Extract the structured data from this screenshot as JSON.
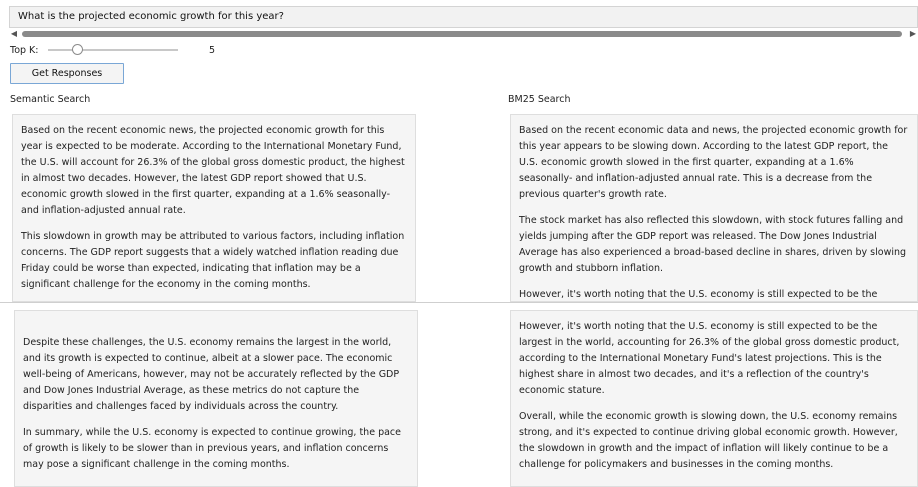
{
  "query": {
    "text": "What is the projected economic growth for this year?"
  },
  "controls": {
    "topk_label": "Top K:",
    "topk_value": "5",
    "topk_fraction": 0.2,
    "button_label": "Get Responses"
  },
  "semantic": {
    "title": "Semantic Search",
    "top_paragraphs": [
      "Based on the recent economic news, the projected economic growth for this year is expected to be moderate. According to the International Monetary Fund, the U.S. will account for 26.3% of the global gross domestic product, the highest in almost two decades. However, the latest GDP report showed that U.S. economic growth slowed in the first quarter, expanding at a 1.6% seasonally- and inflation-adjusted annual rate.",
      "This slowdown in growth may be attributed to various factors, including inflation concerns. The GDP report suggests that a widely watched inflation reading due Friday could be worse than expected, indicating that inflation may be a significant challenge for the economy in the coming months."
    ],
    "bottom_paragraphs": [
      "Despite these challenges, the U.S. economy remains the largest in the world, and its growth is expected to continue, albeit at a slower pace. The economic well-being of Americans, however, may not be accurately reflected by the GDP and Dow Jones Industrial Average, as these metrics do not capture the disparities and challenges faced by individuals across the country.",
      "In summary, while the U.S. economy is expected to continue growing, the pace of growth is likely to be slower than in previous years, and inflation concerns may pose a significant challenge in the coming months."
    ]
  },
  "bm25": {
    "title": "BM25 Search",
    "top_paragraphs": [
      "Based on the recent economic data and news, the projected economic growth for this year appears to be slowing down. According to the latest GDP report, the U.S. economic growth slowed in the first quarter, expanding at a 1.6% seasonally- and inflation-adjusted annual rate. This is a decrease from the previous quarter's growth rate.",
      "The stock market has also reflected this slowdown, with stock futures falling and yields jumping after the GDP report was released. The Dow Jones Industrial Average has also experienced a broad-based decline in shares, driven by slowing growth and stubborn inflation.",
      "However, it's worth noting that the U.S. economy is still expected to be the"
    ],
    "bottom_paragraphs": [
      "However, it's worth noting that the U.S. economy is still expected to be the largest in the world, accounting for 26.3% of the global gross domestic product, according to the International Monetary Fund's latest projections. This is the highest share in almost two decades, and it's a reflection of the country's economic stature.",
      "Overall, while the economic growth is slowing down, the U.S. economy remains strong, and it's expected to continue driving global economic growth. However, the slowdown in growth and the impact of inflation will likely continue to be a challenge for policymakers and businesses in the coming months."
    ]
  }
}
